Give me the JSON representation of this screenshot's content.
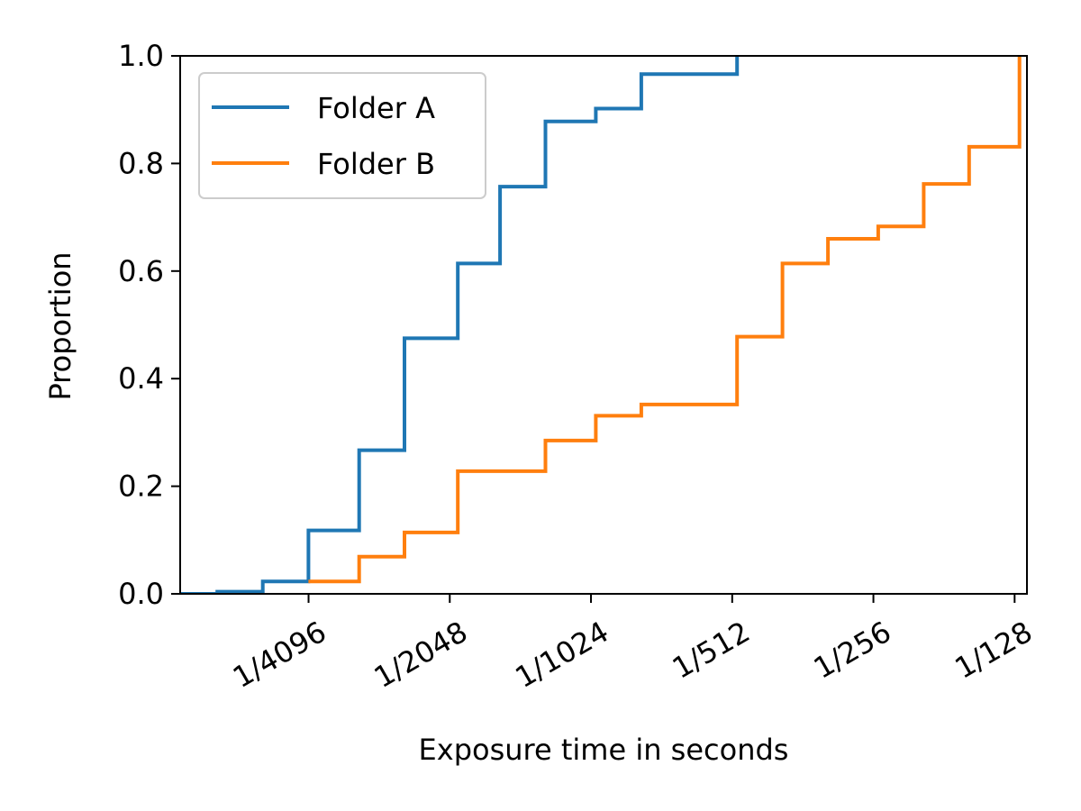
{
  "chart_data": {
    "type": "line",
    "step": "post",
    "title": "",
    "xlabel": "Exposure time in seconds",
    "ylabel": "Proportion",
    "x_scale": "log2",
    "xlim": [
      0.00013,
      0.0083
    ],
    "ylim": [
      0.0,
      1.0
    ],
    "grid": false,
    "legend_position": "top-left",
    "x_ticks": [
      {
        "value": 0.000244140625,
        "label": "1/4096"
      },
      {
        "value": 0.00048828125,
        "label": "1/2048"
      },
      {
        "value": 0.0009765625,
        "label": "1/1024"
      },
      {
        "value": 0.001953125,
        "label": "1/512"
      },
      {
        "value": 0.00390625,
        "label": "1/256"
      },
      {
        "value": 0.0078125,
        "label": "1/128"
      }
    ],
    "y_ticks": [
      {
        "value": 0.0,
        "label": "0.0"
      },
      {
        "value": 0.2,
        "label": "0.2"
      },
      {
        "value": 0.4,
        "label": "0.4"
      },
      {
        "value": 0.6,
        "label": "0.6"
      },
      {
        "value": 0.8,
        "label": "0.8"
      },
      {
        "value": 1.0,
        "label": "1.0"
      }
    ],
    "series": [
      {
        "name": "Folder A",
        "color": "#1f77b4",
        "x": [
          0.00013,
          0.000156,
          0.000195,
          0.000244,
          0.000313,
          0.000391,
          0.000508,
          0.000625,
          0.000781,
          0.001,
          0.00125,
          0.002
        ],
        "y": [
          0.0,
          0.004,
          0.023,
          0.118,
          0.267,
          0.475,
          0.614,
          0.757,
          0.878,
          0.902,
          0.966,
          1.0
        ]
      },
      {
        "name": "Folder B",
        "color": "#ff7f0e",
        "x": [
          0.000244,
          0.000313,
          0.000391,
          0.000508,
          0.000781,
          0.001,
          0.00125,
          0.002,
          0.0025,
          0.003125,
          0.004,
          0.005,
          0.00625,
          0.008
        ],
        "y": [
          0.023,
          0.069,
          0.114,
          0.228,
          0.285,
          0.331,
          0.352,
          0.478,
          0.614,
          0.66,
          0.683,
          0.762,
          0.831,
          1.0
        ]
      }
    ]
  }
}
